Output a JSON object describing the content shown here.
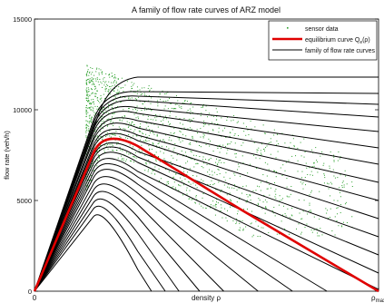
{
  "chart_data": {
    "type": "line",
    "title": "A family of flow rate curves of ARZ model",
    "xlabel": "density ρ",
    "ylabel": "flow rate (veh/h)",
    "xlim": [
      0,
      1
    ],
    "ylim": [
      0,
      15000
    ],
    "x_ticks": [
      {
        "value": 0,
        "label": "0"
      },
      {
        "value": 1,
        "label": "ρ",
        "sub": "max"
      }
    ],
    "y_ticks": [
      {
        "value": 0,
        "label": "0"
      },
      {
        "value": 5000,
        "label": "5000"
      },
      {
        "value": 10000,
        "label": "10000"
      },
      {
        "value": 15000,
        "label": "15000"
      }
    ],
    "grid": false,
    "legend": {
      "position": "top-right",
      "entries": [
        {
          "label": "sensor data",
          "kind": "marker",
          "color": "#2ca02c"
        },
        {
          "label": "equilibrium curve Q",
          "sub": "e",
          "suffix": "(ρ)",
          "kind": "line",
          "color": "#e00000"
        },
        {
          "label": "family of flow rate curves",
          "kind": "line",
          "color": "#000000"
        }
      ]
    },
    "colors": {
      "curves": "#000000",
      "equilibrium": "#e00000",
      "sensor": "#2ca02c"
    },
    "equilibrium_curve": {
      "name": "equilibrium curve Q_e(ρ)",
      "x": [
        0,
        0.2,
        0.3,
        0.6,
        1.0
      ],
      "y": [
        0,
        8900,
        8000,
        4500,
        0
      ]
    },
    "family_curves": [
      {
        "x": [
          0,
          0.22,
          0.3,
          1.0
        ],
        "y": [
          0,
          11500,
          11800,
          11800
        ]
      },
      {
        "x": [
          0,
          0.2,
          0.3,
          1.0
        ],
        "y": [
          0,
          11000,
          11000,
          10900
        ]
      },
      {
        "x": [
          0,
          0.2,
          0.3,
          1.0
        ],
        "y": [
          0,
          10800,
          10750,
          10300
        ]
      },
      {
        "x": [
          0,
          0.2,
          0.3,
          1.0
        ],
        "y": [
          0,
          10600,
          10500,
          9600
        ]
      },
      {
        "x": [
          0,
          0.2,
          0.3,
          1.0
        ],
        "y": [
          0,
          10400,
          10100,
          8800
        ]
      },
      {
        "x": [
          0,
          0.2,
          0.3,
          1.0
        ],
        "y": [
          0,
          10200,
          9800,
          7900
        ]
      },
      {
        "x": [
          0,
          0.2,
          0.3,
          1.0
        ],
        "y": [
          0,
          9900,
          9400,
          7000
        ]
      },
      {
        "x": [
          0,
          0.2,
          0.3,
          1.0
        ],
        "y": [
          0,
          9700,
          9000,
          6000
        ]
      },
      {
        "x": [
          0,
          0.2,
          0.3,
          1.0
        ],
        "y": [
          0,
          9400,
          8600,
          5000
        ]
      },
      {
        "x": [
          0,
          0.2,
          0.3,
          1.0
        ],
        "y": [
          0,
          9200,
          8300,
          4000
        ]
      },
      {
        "x": [
          0,
          0.2,
          0.3,
          1.0
        ],
        "y": [
          0,
          8700,
          7700,
          3000
        ]
      },
      {
        "x": [
          0,
          0.2,
          0.3,
          1.0
        ],
        "y": [
          0,
          8500,
          7400,
          2000
        ]
      },
      {
        "x": [
          0,
          0.2,
          0.3,
          1.0
        ],
        "y": [
          0,
          8200,
          7100,
          1000
        ]
      },
      {
        "x": [
          0,
          0.2,
          0.3,
          1.0
        ],
        "y": [
          0,
          7900,
          6600,
          100
        ]
      },
      {
        "x": [
          0,
          0.2,
          0.3,
          0.85
        ],
        "y": [
          0,
          7600,
          6300,
          0
        ]
      },
      {
        "x": [
          0,
          0.2,
          0.3,
          0.75
        ],
        "y": [
          0,
          7300,
          5900,
          0
        ]
      },
      {
        "x": [
          0,
          0.2,
          0.3,
          0.65
        ],
        "y": [
          0,
          6900,
          5400,
          0
        ]
      },
      {
        "x": [
          0,
          0.2,
          0.3,
          0.55
        ],
        "y": [
          0,
          6500,
          4800,
          0
        ]
      },
      {
        "x": [
          0,
          0.2,
          0.3,
          0.48
        ],
        "y": [
          0,
          6100,
          4100,
          0
        ]
      },
      {
        "x": [
          0,
          0.2,
          0.3,
          0.42
        ],
        "y": [
          0,
          5700,
          3200,
          0
        ]
      },
      {
        "x": [
          0,
          0.2,
          0.3,
          0.38
        ],
        "y": [
          0,
          5300,
          2200,
          0
        ]
      },
      {
        "x": [
          0,
          0.2,
          0.3,
          0.34
        ],
        "y": [
          0,
          4800,
          1200,
          0
        ]
      }
    ],
    "sensor_data": {
      "name": "sensor data",
      "x_range": [
        0.15,
        0.93
      ],
      "y_range": [
        3000,
        12500
      ],
      "density_profile": {
        "peak_x": 0.21,
        "peak_y": 11000,
        "spread_y": 1800
      }
    }
  }
}
